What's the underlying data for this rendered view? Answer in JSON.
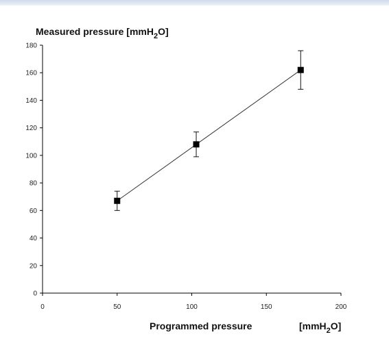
{
  "chart_data": {
    "type": "scatter",
    "title": "",
    "ylabel": {
      "main": "Measured pressure [mmH",
      "sub": "2",
      "end": "O]"
    },
    "xlabel": {
      "main": "Programmed pressure",
      "unit_main": "[mmH",
      "sub": "2",
      "end": "O]"
    },
    "xlim": [
      0,
      200
    ],
    "ylim": [
      0,
      180
    ],
    "x_ticks": [
      0,
      50,
      100,
      150,
      200
    ],
    "y_ticks": [
      0,
      20,
      40,
      60,
      80,
      100,
      120,
      140,
      160,
      180
    ],
    "grid": false,
    "legend": "none",
    "points": [
      {
        "x": 50,
        "y": 67,
        "err": 7
      },
      {
        "x": 103,
        "y": 108,
        "err": 9
      },
      {
        "x": 173,
        "y": 162,
        "err": 14
      }
    ],
    "trendline": {
      "x_start": 50,
      "y_start": 67,
      "x_end": 173,
      "y_end": 162
    },
    "colors": {
      "marker": "#000000",
      "line": "#333333",
      "axis": "#000000",
      "background": "#ffffff"
    }
  }
}
